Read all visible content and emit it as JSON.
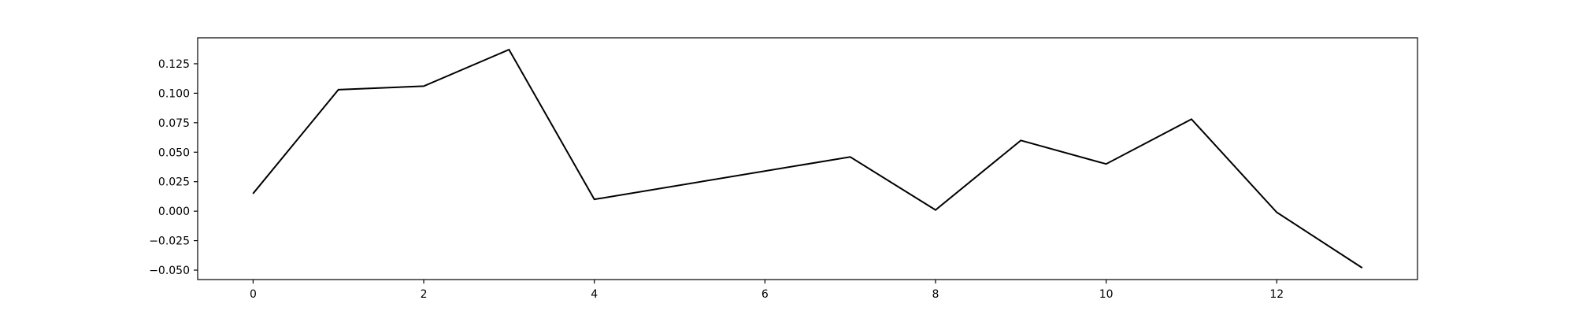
{
  "chart_data": {
    "type": "line",
    "x": [
      0,
      1,
      2,
      3,
      4,
      7,
      8,
      9,
      10,
      11,
      12,
      13
    ],
    "series": [
      {
        "values": [
          0.015,
          0.103,
          0.106,
          0.137,
          0.01,
          0.046,
          0.001,
          0.06,
          0.04,
          0.078,
          -0.001,
          -0.048
        ]
      }
    ],
    "xlim": [
      -0.65,
      13.65
    ],
    "ylim": [
      -0.058,
      0.147
    ],
    "xticks": [
      0,
      2,
      4,
      6,
      8,
      10,
      12
    ],
    "xtick_labels": [
      "0",
      "2",
      "4",
      "6",
      "8",
      "10",
      "12"
    ],
    "yticks": [
      -0.05,
      -0.025,
      0.0,
      0.025,
      0.05,
      0.075,
      0.1,
      0.125
    ],
    "ytick_labels": [
      "−0.050",
      "−0.025",
      "0.000",
      "0.025",
      "0.050",
      "0.075",
      "0.100",
      "0.125"
    ],
    "line_color": "#000000",
    "grid": false,
    "legend": false
  }
}
